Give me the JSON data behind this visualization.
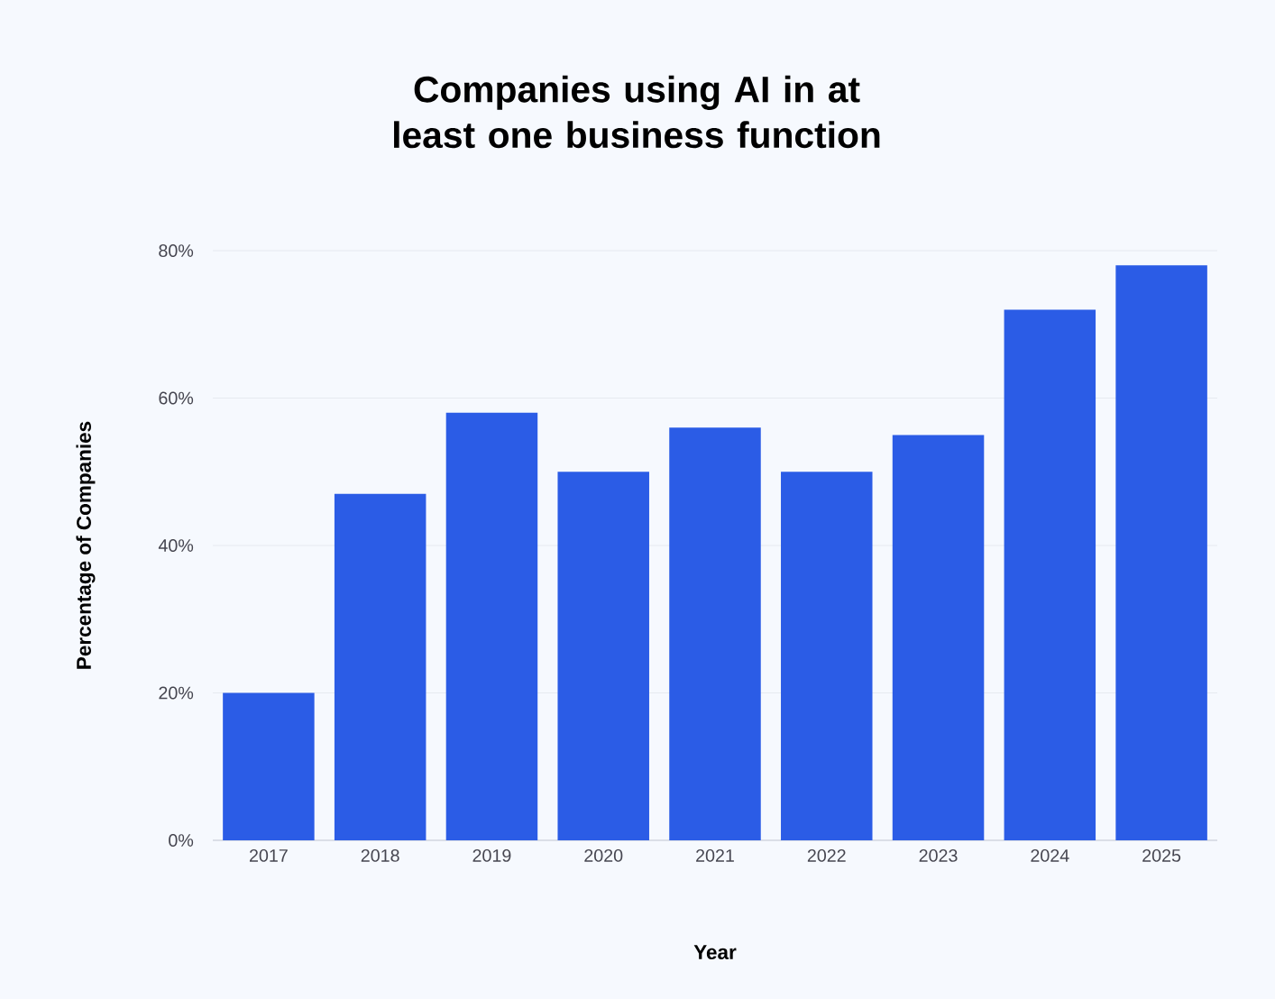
{
  "chart_data": {
    "type": "bar",
    "title": "Companies using AI in at least one business function",
    "xlabel": "Year",
    "ylabel": "Percentage of Companies",
    "categories": [
      "2017",
      "2018",
      "2019",
      "2020",
      "2021",
      "2022",
      "2023",
      "2024",
      "2025"
    ],
    "values": [
      20,
      47,
      58,
      50,
      56,
      50,
      55,
      72,
      78
    ],
    "color": "#2b5ce6",
    "ylim": [
      0,
      80
    ],
    "yticks": [
      {
        "value": 0,
        "label": "0%"
      },
      {
        "value": 20,
        "label": "20%"
      },
      {
        "value": 40,
        "label": "40%"
      },
      {
        "value": 60,
        "label": "60%"
      },
      {
        "value": 80,
        "label": "80%"
      }
    ],
    "grid": "y"
  }
}
